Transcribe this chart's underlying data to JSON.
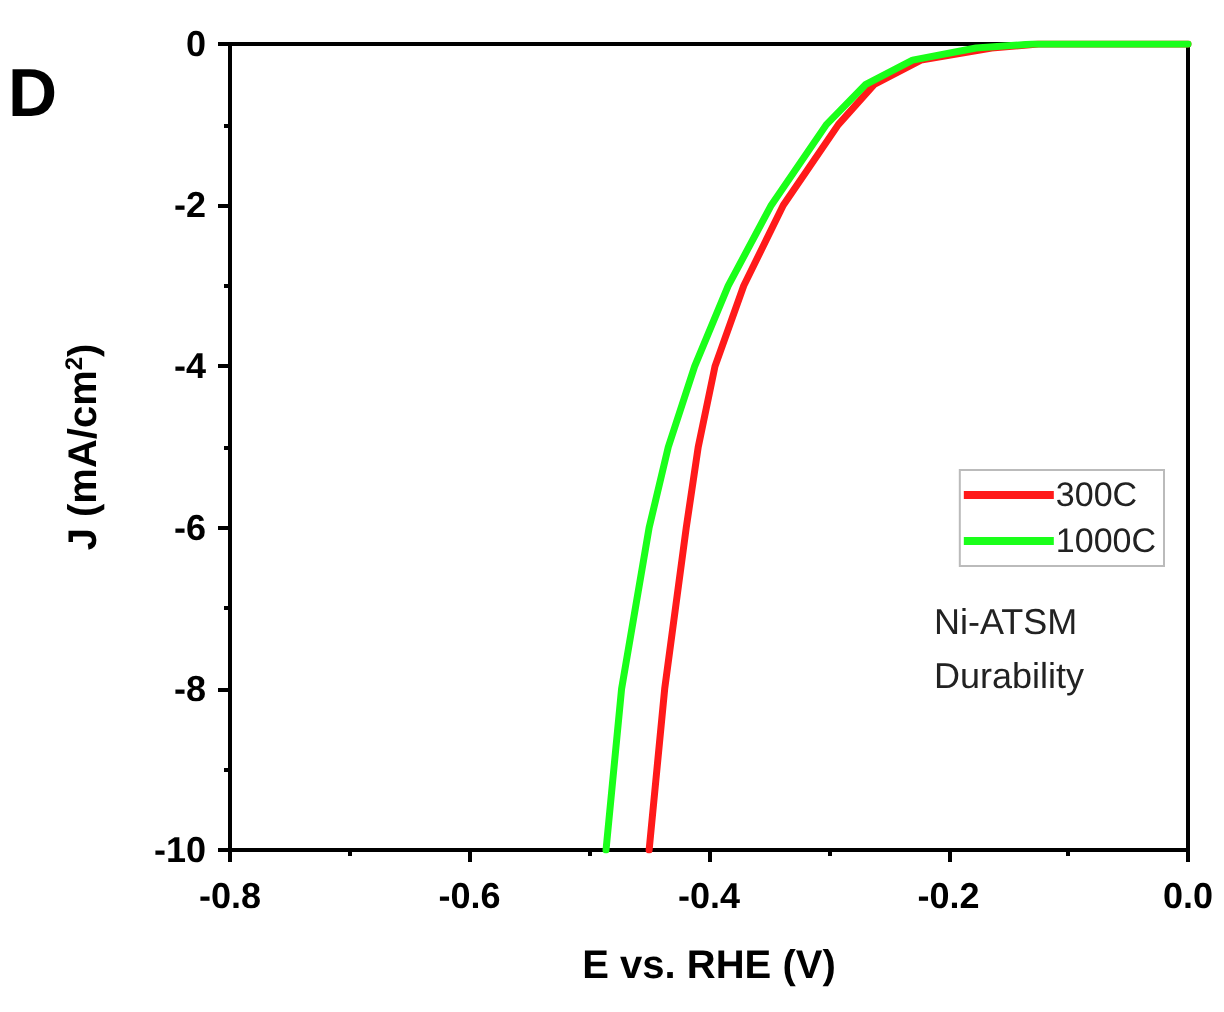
{
  "chart_data": {
    "type": "line",
    "xlabel": "E vs. RHE (V)",
    "ylabel": "J (mA/cm$^{2}$)",
    "xlim": [
      -0.8,
      0.0
    ],
    "xticks": [
      -0.8,
      -0.6,
      -0.4,
      -0.2,
      {
        "value": 0,
        "label": "0.0"
      }
    ],
    "ylim": [
      -10,
      0
    ],
    "yticks": [
      -10,
      -8,
      -6,
      -4,
      -2,
      0
    ],
    "grid": false,
    "legend": "right",
    "marker": "none",
    "line_style": "solid",
    "annotations": [
      "D",
      "Ni-ATSM",
      "Durability"
    ],
    "series": [
      {
        "name": "300C",
        "color": "#ff1a1a",
        "x": [
          -0.45,
          -0.437,
          -0.419,
          -0.409,
          -0.395,
          -0.371,
          -0.338,
          -0.292,
          -0.262,
          -0.223,
          -0.164,
          -0.125,
          -0.05,
          0.0
        ],
        "values": [
          -10,
          -8,
          -6,
          -5,
          -4,
          -3,
          -2,
          -1,
          -0.5,
          -0.2,
          -0.05,
          0,
          0,
          0
        ]
      },
      {
        "name": "1000C",
        "color": "#1aff1a",
        "x": [
          -0.486,
          -0.473,
          -0.45,
          -0.434,
          -0.412,
          -0.384,
          -0.348,
          -0.302,
          -0.269,
          -0.23,
          -0.177,
          -0.13,
          -0.05,
          0.0
        ],
        "values": [
          -10,
          -8,
          -6,
          -5,
          -4,
          -3,
          -2,
          -1,
          -0.5,
          -0.2,
          -0.05,
          0,
          0,
          0
        ]
      }
    ]
  }
}
